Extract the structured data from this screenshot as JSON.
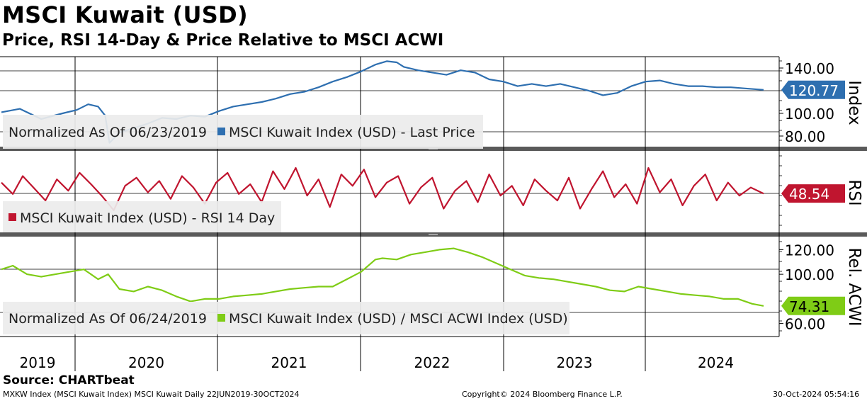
{
  "title": "MSCI Kuwait (USD)",
  "subtitle": "Price, RSI 14-Day & Price Relative to MSCI ACWI",
  "chart_data": [
    {
      "type": "line",
      "panel": "price",
      "ylabel": "Index",
      "ylim": [
        70,
        150
      ],
      "yticks": [
        "140.00",
        "100.00",
        "80.00"
      ],
      "legend": {
        "prefix": "Normalized As Of 06/23/2019",
        "series_label": "MSCI Kuwait Index (USD) - Last Price"
      },
      "last_value_label": "120.77",
      "series": [
        {
          "name": "MSCI Kuwait Index (USD) - Last Price",
          "color": "#2e6fb0",
          "x": [
            2019.47,
            2019.6,
            2019.75,
            2019.9,
            2020.0,
            2020.08,
            2020.15,
            2020.2,
            2020.23,
            2020.3,
            2020.4,
            2020.5,
            2020.6,
            2020.7,
            2020.8,
            2020.9,
            2021.0,
            2021.1,
            2021.2,
            2021.3,
            2021.4,
            2021.5,
            2021.6,
            2021.7,
            2021.8,
            2021.9,
            2022.0,
            2022.1,
            2022.18,
            2022.25,
            2022.3,
            2022.4,
            2022.5,
            2022.6,
            2022.7,
            2022.8,
            2022.9,
            2023.0,
            2023.1,
            2023.2,
            2023.3,
            2023.4,
            2023.5,
            2023.6,
            2023.7,
            2023.8,
            2023.9,
            2024.0,
            2024.1,
            2024.2,
            2024.3,
            2024.4,
            2024.5,
            2024.6,
            2024.7,
            2024.83
          ],
          "values": [
            101,
            104,
            95,
            100,
            103,
            108,
            106,
            98,
            74,
            83,
            87,
            91,
            96,
            95,
            98,
            97,
            102,
            106,
            108,
            110,
            113,
            117,
            119,
            123,
            128,
            132,
            137,
            143,
            146,
            145,
            141,
            138,
            136,
            134,
            138,
            136,
            130,
            128,
            124,
            126,
            124,
            126,
            123,
            120,
            116,
            118,
            124,
            128,
            129,
            126,
            124,
            124,
            123,
            123,
            122,
            120.77
          ]
        }
      ]
    },
    {
      "type": "line",
      "panel": "rsi",
      "ylabel": "RSI",
      "ylim": [
        0,
        100
      ],
      "legend": {
        "series_label": "MSCI Kuwait Index (USD) - RSI 14 Day"
      },
      "last_value_label": "48.54",
      "series": [
        {
          "name": "MSCI Kuwait Index (USD) - RSI 14 Day",
          "color": "#c0152f",
          "x": [
            2019.47,
            2019.55,
            2019.62,
            2019.7,
            2019.78,
            2019.86,
            2019.94,
            2020.02,
            2020.1,
            2020.18,
            2020.26,
            2020.34,
            2020.42,
            2020.5,
            2020.58,
            2020.66,
            2020.74,
            2020.82,
            2020.9,
            2020.98,
            2021.06,
            2021.14,
            2021.22,
            2021.3,
            2021.38,
            2021.46,
            2021.54,
            2021.62,
            2021.7,
            2021.78,
            2021.86,
            2021.94,
            2022.02,
            2022.1,
            2022.18,
            2022.26,
            2022.34,
            2022.42,
            2022.5,
            2022.58,
            2022.66,
            2022.74,
            2022.82,
            2022.9,
            2022.98,
            2023.06,
            2023.14,
            2023.22,
            2023.3,
            2023.38,
            2023.46,
            2023.54,
            2023.62,
            2023.7,
            2023.78,
            2023.86,
            2023.94,
            2024.02,
            2024.1,
            2024.18,
            2024.26,
            2024.34,
            2024.42,
            2024.5,
            2024.58,
            2024.66,
            2024.74,
            2024.83
          ],
          "values": [
            62,
            48,
            70,
            55,
            40,
            66,
            52,
            74,
            60,
            45,
            28,
            58,
            68,
            50,
            64,
            42,
            70,
            56,
            36,
            62,
            74,
            48,
            60,
            38,
            76,
            54,
            80,
            46,
            66,
            32,
            72,
            58,
            78,
            44,
            62,
            70,
            36,
            56,
            68,
            30,
            52,
            64,
            38,
            72,
            46,
            58,
            34,
            66,
            52,
            40,
            68,
            30,
            54,
            76,
            44,
            60,
            36,
            80,
            50,
            66,
            34,
            58,
            72,
            40,
            62,
            46,
            56,
            48.54
          ]
        }
      ]
    },
    {
      "type": "line",
      "panel": "relative",
      "ylabel": "Rel. ACWI",
      "ylim": [
        50,
        130
      ],
      "yticks": [
        "120.00",
        "100.00",
        "60.00"
      ],
      "legend": {
        "prefix": "Normalized As Of 06/24/2019",
        "series_label": "MSCI Kuwait Index (USD) / MSCI ACWI Index (USD)"
      },
      "last_value_label": "74.31",
      "series": [
        {
          "name": "MSCI Kuwait Index (USD) / MSCI ACWI Index (USD)",
          "color": "#7fcc16",
          "x": [
            2019.47,
            2019.55,
            2019.65,
            2019.75,
            2019.85,
            2019.95,
            2020.05,
            2020.15,
            2020.22,
            2020.3,
            2020.4,
            2020.5,
            2020.6,
            2020.7,
            2020.8,
            2020.9,
            2021.0,
            2021.1,
            2021.2,
            2021.3,
            2021.4,
            2021.5,
            2021.6,
            2021.7,
            2021.8,
            2021.9,
            2022.0,
            2022.1,
            2022.15,
            2022.25,
            2022.35,
            2022.45,
            2022.55,
            2022.65,
            2022.75,
            2022.85,
            2022.95,
            2023.05,
            2023.15,
            2023.25,
            2023.35,
            2023.45,
            2023.55,
            2023.65,
            2023.75,
            2023.85,
            2023.95,
            2024.05,
            2024.15,
            2024.25,
            2024.35,
            2024.45,
            2024.55,
            2024.65,
            2024.75,
            2024.83
          ],
          "values": [
            104,
            107,
            100,
            98,
            100,
            102,
            104,
            96,
            100,
            88,
            86,
            90,
            87,
            82,
            78,
            80,
            80,
            82,
            83,
            84,
            86,
            88,
            89,
            90,
            90,
            96,
            102,
            112,
            113,
            112,
            116,
            118,
            120,
            121,
            118,
            114,
            109,
            104,
            99,
            97,
            96,
            94,
            92,
            90,
            87,
            86,
            90,
            88,
            86,
            84,
            83,
            82,
            80,
            80,
            76,
            74.31
          ]
        }
      ]
    }
  ],
  "x_axis": {
    "labels": [
      "2019",
      "2020",
      "2021",
      "2022",
      "2023",
      "2024"
    ]
  },
  "footer": {
    "source": "Source: CHARTbeat",
    "left": "MXKW Index (MSCI Kuwait Index) MSCI Kuwait  Daily 22JUN2019-30OCT2024",
    "center": "Copyright© 2024 Bloomberg Finance L.P.",
    "right": "30-Oct-2024 05:54:16"
  }
}
